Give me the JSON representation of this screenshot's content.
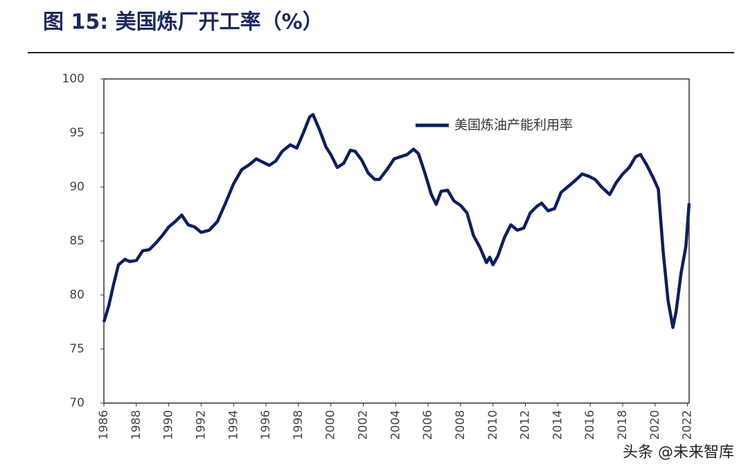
{
  "chart_data": {
    "type": "line",
    "title": "图 15:  美国炼厂开工率（%）",
    "watermark": "头条 @未来智库",
    "x": [
      1986.0,
      1986.3,
      1986.6,
      1986.9,
      1987.3,
      1987.6,
      1988.0,
      1988.4,
      1988.8,
      1989.2,
      1989.6,
      1990.0,
      1990.4,
      1990.8,
      1991.2,
      1991.6,
      1992.0,
      1992.5,
      1993.0,
      1993.5,
      1994.0,
      1994.5,
      1995.0,
      1995.4,
      1995.8,
      1996.2,
      1996.6,
      1997.0,
      1997.5,
      1997.9,
      1998.3,
      1998.7,
      1998.9,
      1999.3,
      1999.7,
      2000.0,
      2000.4,
      2000.8,
      2001.2,
      2001.5,
      2001.9,
      2002.3,
      2002.7,
      2003.0,
      2003.5,
      2003.9,
      2004.3,
      2004.7,
      2005.1,
      2005.4,
      2005.8,
      2006.2,
      2006.5,
      2006.8,
      2007.2,
      2007.6,
      2008.0,
      2008.4,
      2008.8,
      2009.2,
      2009.6,
      2009.8,
      2010.0,
      2010.3,
      2010.7,
      2011.1,
      2011.5,
      2011.9,
      2012.3,
      2012.7,
      2013.0,
      2013.4,
      2013.8,
      2014.2,
      2014.6,
      2015.0,
      2015.5,
      2015.9,
      2016.3,
      2016.7,
      2017.2,
      2017.6,
      2018.0,
      2018.4,
      2018.8,
      2019.1,
      2019.5,
      2019.9,
      2020.2,
      2020.5,
      2020.8,
      2021.1,
      2021.3,
      2021.6,
      2021.9,
      2022.0,
      2022.1
    ],
    "series": [
      {
        "name": "美国炼油产能利用率",
        "color": "#0d1f5c",
        "values": [
          77.5,
          79,
          81,
          82.8,
          83.3,
          83.1,
          83.2,
          84.1,
          84.2,
          84.8,
          85.5,
          86.3,
          86.8,
          87.4,
          86.5,
          86.3,
          85.8,
          86.0,
          86.8,
          88.5,
          90.3,
          91.6,
          92.1,
          92.6,
          92.3,
          92.0,
          92.4,
          93.3,
          93.9,
          93.6,
          95.0,
          96.5,
          96.7,
          95.3,
          93.7,
          93.0,
          91.8,
          92.2,
          93.4,
          93.3,
          92.5,
          91.3,
          90.7,
          90.7,
          91.7,
          92.6,
          92.8,
          93.0,
          93.5,
          93.1,
          91.3,
          89.3,
          88.4,
          89.6,
          89.7,
          88.7,
          88.3,
          87.6,
          85.5,
          84.4,
          83.0,
          83.5,
          82.8,
          83.6,
          85.3,
          86.5,
          86.0,
          86.2,
          87.6,
          88.2,
          88.5,
          87.8,
          88.0,
          89.5,
          90.0,
          90.5,
          91.2,
          91.0,
          90.7,
          90.0,
          89.3,
          90.4,
          91.2,
          91.8,
          92.8,
          93.0,
          92.0,
          90.8,
          89.8,
          84.0,
          79.5,
          77.0,
          78.5,
          82.0,
          84.5,
          86.5,
          88.5
        ]
      }
    ],
    "xlim": [
      1986,
      2022.1
    ],
    "xticks": [
      1986,
      1988,
      1990,
      1992,
      1994,
      1996,
      1998,
      2000,
      2002,
      2004,
      2006,
      2008,
      2010,
      2012,
      2014,
      2016,
      2018,
      2020,
      2022
    ],
    "ylim": [
      70,
      100
    ],
    "yticks": [
      70,
      75,
      80,
      85,
      90,
      95,
      100
    ]
  }
}
